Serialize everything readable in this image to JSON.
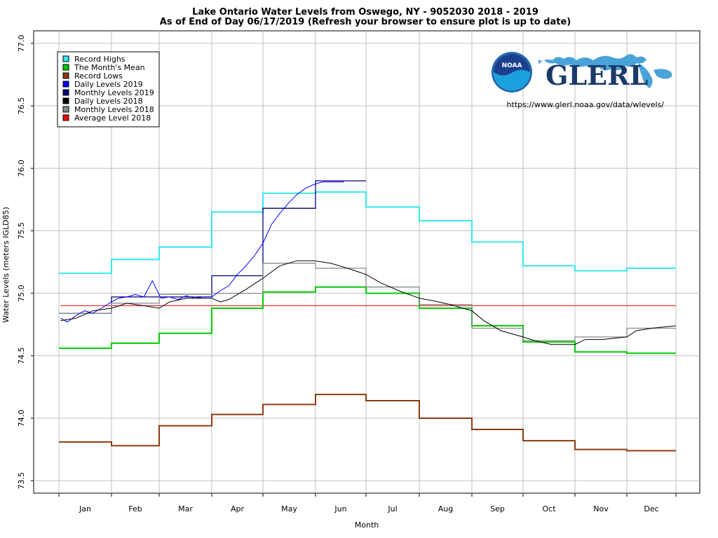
{
  "chart_data": {
    "type": "line",
    "title": "Lake Ontario Water Levels from Oswego, NY - 9052030 2018 - 2019",
    "subtitle": "As of End of Day 06/17/2019 (Refresh your browser to ensure plot is up to date)",
    "xlabel": "Month",
    "ylabel": "Water Levels (meters IGLD85)",
    "ylim": [
      73.4,
      77.1
    ],
    "yticks": [
      73.5,
      74.0,
      74.5,
      75.0,
      75.5,
      76.0,
      76.5,
      77.0
    ],
    "ytick_labels": [
      "73.5",
      "74.0",
      "74.5",
      "75.0",
      "75.5",
      "76.0",
      "76.5",
      "77.0"
    ],
    "categories": [
      "Jan",
      "Feb",
      "Mar",
      "Apr",
      "May",
      "Jun",
      "Jul",
      "Aug",
      "Sep",
      "Oct",
      "Nov",
      "Dec"
    ],
    "grid": true,
    "legend_position": "top-left",
    "monthly_series": [
      {
        "key": "record_highs",
        "name": "Record Highs",
        "color": "#33e8f0",
        "values": [
          75.16,
          75.27,
          75.37,
          75.65,
          75.8,
          75.81,
          75.69,
          75.58,
          75.41,
          75.22,
          75.18,
          75.2
        ]
      },
      {
        "key": "monthly_mean",
        "name": "The Month's Mean",
        "color": "#00cc00",
        "values": [
          74.56,
          74.6,
          74.68,
          74.88,
          75.01,
          75.05,
          75.0,
          74.88,
          74.74,
          74.61,
          74.53,
          74.52
        ]
      },
      {
        "key": "record_lows",
        "name": "Record Lows",
        "color": "#8b3a0f",
        "values": [
          73.81,
          73.78,
          73.94,
          74.03,
          74.11,
          74.19,
          74.14,
          74.0,
          73.91,
          73.82,
          73.75,
          73.74
        ]
      },
      {
        "key": "monthly_2019",
        "name": "Monthly Levels 2019",
        "color": "#000080",
        "values": [
          74.84,
          74.97,
          74.97,
          75.14,
          75.68,
          75.9
        ]
      },
      {
        "key": "monthly_2018",
        "name": "Monthly Levels 2018",
        "color": "#7f8c8d",
        "values": [
          74.84,
          74.92,
          74.99,
          75.0,
          75.24,
          75.2,
          75.05,
          74.91,
          74.72,
          74.62,
          74.65,
          74.72
        ]
      }
    ],
    "daily_series": [
      {
        "key": "daily_2019",
        "name": "Daily Levels 2019",
        "color": "#0000ff",
        "x": [
          1,
          5,
          10,
          15,
          20,
          25,
          31,
          35,
          40,
          45,
          50,
          55,
          60,
          65,
          70,
          75,
          80,
          85,
          90,
          95,
          100,
          105,
          110,
          115,
          120,
          125,
          130,
          135,
          140,
          145,
          150,
          155,
          160,
          165,
          168
        ],
        "y": [
          74.8,
          74.77,
          74.82,
          74.86,
          74.84,
          74.88,
          74.93,
          74.96,
          74.97,
          74.99,
          74.97,
          75.1,
          74.96,
          74.97,
          74.95,
          74.98,
          74.96,
          74.97,
          74.97,
          75.02,
          75.06,
          75.15,
          75.22,
          75.3,
          75.4,
          75.55,
          75.64,
          75.72,
          75.79,
          75.84,
          75.87,
          75.89,
          75.89,
          75.89,
          75.89
        ]
      },
      {
        "key": "daily_2018",
        "name": "Daily Levels 2018",
        "color": "#000000",
        "x": [
          1,
          10,
          20,
          31,
          40,
          50,
          59,
          65,
          75,
          85,
          90,
          95,
          100,
          110,
          120,
          130,
          140,
          150,
          160,
          170,
          181,
          190,
          200,
          212,
          220,
          230,
          243,
          250,
          260,
          273,
          280,
          290,
          304,
          310,
          320,
          334,
          340,
          350,
          365
        ],
        "y": [
          74.78,
          74.8,
          74.86,
          74.88,
          74.92,
          74.9,
          74.88,
          74.93,
          74.96,
          74.96,
          74.96,
          74.93,
          74.95,
          75.03,
          75.12,
          75.22,
          75.26,
          75.26,
          75.24,
          75.2,
          75.15,
          75.08,
          75.02,
          74.96,
          74.94,
          74.91,
          74.86,
          74.78,
          74.7,
          74.65,
          74.62,
          74.59,
          74.59,
          74.63,
          74.63,
          74.65,
          74.7,
          74.72,
          74.74
        ]
      },
      {
        "key": "average_2018",
        "name": "Average Level 2018",
        "color": "#ff0000",
        "x": [
          1,
          365
        ],
        "y": [
          74.9,
          74.9
        ]
      }
    ],
    "legend_order": [
      "Record Highs",
      "The Month's Mean",
      "Record Lows",
      "Daily Levels 2019",
      "Monthly Levels 2019",
      "Daily Levels 2018",
      "Monthly Levels 2018",
      "Average Level 2018"
    ],
    "legend_colors": [
      "#33e8f0",
      "#00cc00",
      "#8b3a0f",
      "#0000ff",
      "#000080",
      "#000000",
      "#7f8c8d",
      "#ff0000"
    ]
  },
  "branding": {
    "noaa_logo_text": "NOAA",
    "glerl_logo_text": "GLERL",
    "url": "https://www.glerl.noaa.gov/data/wlevels/"
  }
}
